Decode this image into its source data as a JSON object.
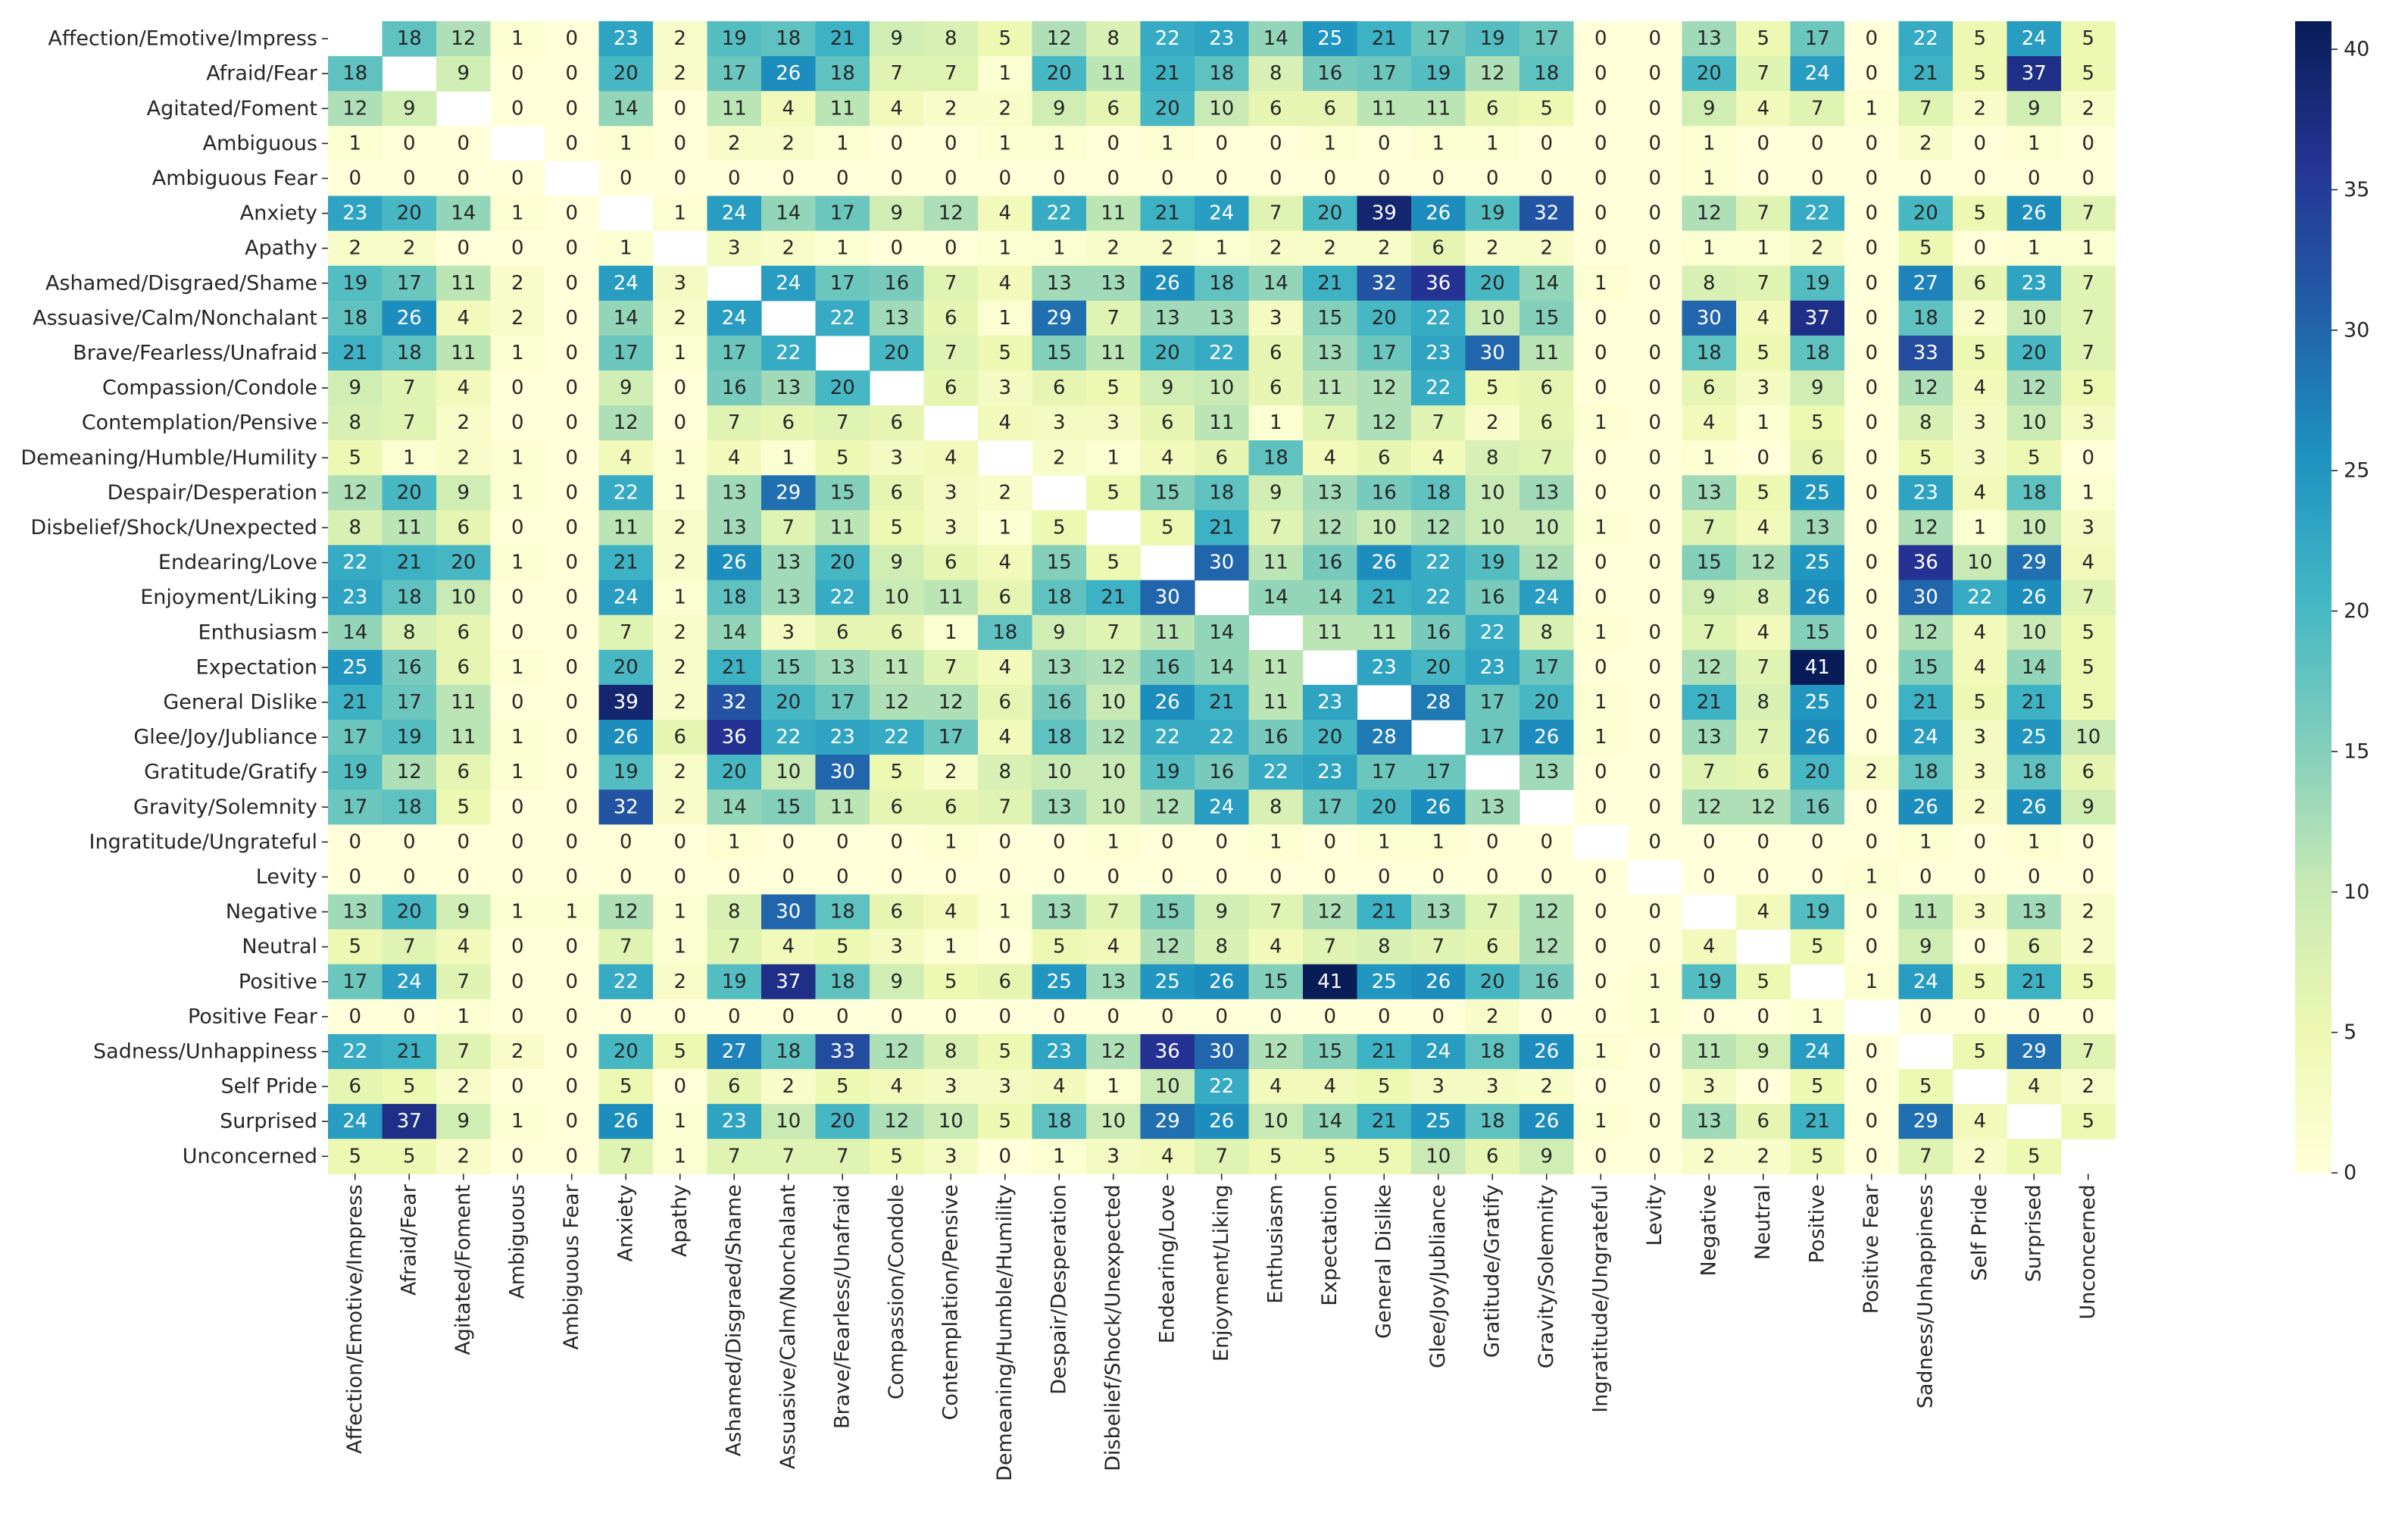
{
  "chart_data": {
    "type": "heatmap",
    "title": "",
    "xlabel": "",
    "ylabel": "",
    "labels": [
      "Affection/Emotive/Impress",
      "Afraid/Fear",
      "Agitated/Foment",
      "Ambiguous",
      "Ambiguous Fear",
      "Anxiety",
      "Apathy",
      "Ashamed/Disgraed/Shame",
      "Assuasive/Calm/Nonchalant",
      "Brave/Fearless/Unafraid",
      "Compassion/Condole",
      "Contemplation/Pensive",
      "Demeaning/Humble/Humility",
      "Despair/Desperation",
      "Disbelief/Shock/Unexpected",
      "Endearing/Love",
      "Enjoyment/Liking",
      "Enthusiasm",
      "Expectation",
      "General Dislike",
      "Glee/Joy/Jubliance",
      "Gratitude/Gratify",
      "Gravity/Solemnity",
      "Ingratitude/Ungrateful",
      "Levity",
      "Negative",
      "Neutral",
      "Positive",
      "Positive Fear",
      "Sadness/Unhappiness",
      "Self Pride",
      "Surprised",
      "Unconcerned"
    ],
    "matrix": [
      [
        null,
        18,
        12,
        1,
        0,
        23,
        2,
        19,
        18,
        21,
        9,
        8,
        5,
        12,
        8,
        22,
        23,
        14,
        25,
        21,
        17,
        19,
        17,
        0,
        0,
        13,
        5,
        17,
        0,
        22,
        5,
        24,
        5
      ],
      [
        18,
        null,
        9,
        0,
        0,
        20,
        2,
        17,
        26,
        18,
        7,
        7,
        1,
        20,
        11,
        21,
        18,
        8,
        16,
        17,
        19,
        12,
        18,
        0,
        0,
        20,
        7,
        24,
        0,
        21,
        5,
        37,
        5
      ],
      [
        12,
        9,
        null,
        0,
        0,
        14,
        0,
        11,
        4,
        11,
        4,
        2,
        2,
        9,
        6,
        20,
        10,
        6,
        6,
        11,
        11,
        6,
        5,
        0,
        0,
        9,
        4,
        7,
        1,
        7,
        2,
        9,
        2
      ],
      [
        1,
        0,
        0,
        null,
        0,
        1,
        0,
        2,
        2,
        1,
        0,
        0,
        1,
        1,
        0,
        1,
        0,
        0,
        1,
        0,
        1,
        1,
        0,
        0,
        0,
        1,
        0,
        0,
        0,
        2,
        0,
        1,
        0
      ],
      [
        0,
        0,
        0,
        0,
        null,
        0,
        0,
        0,
        0,
        0,
        0,
        0,
        0,
        0,
        0,
        0,
        0,
        0,
        0,
        0,
        0,
        0,
        0,
        0,
        0,
        1,
        0,
        0,
        0,
        0,
        0,
        0,
        0
      ],
      [
        23,
        20,
        14,
        1,
        0,
        null,
        1,
        24,
        14,
        17,
        9,
        12,
        4,
        22,
        11,
        21,
        24,
        7,
        20,
        39,
        26,
        19,
        32,
        0,
        0,
        12,
        7,
        22,
        0,
        20,
        5,
        26,
        7
      ],
      [
        2,
        2,
        0,
        0,
        0,
        1,
        null,
        3,
        2,
        1,
        0,
        0,
        1,
        1,
        2,
        2,
        1,
        2,
        2,
        2,
        6,
        2,
        2,
        0,
        0,
        1,
        1,
        2,
        0,
        5,
        0,
        1,
        1
      ],
      [
        19,
        17,
        11,
        2,
        0,
        24,
        3,
        null,
        24,
        17,
        16,
        7,
        4,
        13,
        13,
        26,
        18,
        14,
        21,
        32,
        36,
        20,
        14,
        1,
        0,
        8,
        7,
        19,
        0,
        27,
        6,
        23,
        7
      ],
      [
        18,
        26,
        4,
        2,
        0,
        14,
        2,
        24,
        null,
        22,
        13,
        6,
        1,
        29,
        7,
        13,
        13,
        3,
        15,
        20,
        22,
        10,
        15,
        0,
        0,
        30,
        4,
        37,
        0,
        18,
        2,
        10,
        7
      ],
      [
        21,
        18,
        11,
        1,
        0,
        17,
        1,
        17,
        22,
        null,
        20,
        7,
        5,
        15,
        11,
        20,
        22,
        6,
        13,
        17,
        23,
        30,
        11,
        0,
        0,
        18,
        5,
        18,
        0,
        33,
        5,
        20,
        7
      ],
      [
        9,
        7,
        4,
        0,
        0,
        9,
        0,
        16,
        13,
        20,
        null,
        6,
        3,
        6,
        5,
        9,
        10,
        6,
        11,
        12,
        22,
        5,
        6,
        0,
        0,
        6,
        3,
        9,
        0,
        12,
        4,
        12,
        5
      ],
      [
        8,
        7,
        2,
        0,
        0,
        12,
        0,
        7,
        6,
        7,
        6,
        null,
        4,
        3,
        3,
        6,
        11,
        1,
        7,
        12,
        7,
        2,
        6,
        1,
        0,
        4,
        1,
        5,
        0,
        8,
        3,
        10,
        3
      ],
      [
        5,
        1,
        2,
        1,
        0,
        4,
        1,
        4,
        1,
        5,
        3,
        4,
        null,
        2,
        1,
        4,
        6,
        18,
        4,
        6,
        4,
        8,
        7,
        0,
        0,
        1,
        0,
        6,
        0,
        5,
        3,
        5,
        0
      ],
      [
        12,
        20,
        9,
        1,
        0,
        22,
        1,
        13,
        29,
        15,
        6,
        3,
        2,
        null,
        5,
        15,
        18,
        9,
        13,
        16,
        18,
        10,
        13,
        0,
        0,
        13,
        5,
        25,
        0,
        23,
        4,
        18,
        1
      ],
      [
        8,
        11,
        6,
        0,
        0,
        11,
        2,
        13,
        7,
        11,
        5,
        3,
        1,
        5,
        null,
        5,
        21,
        7,
        12,
        10,
        12,
        10,
        10,
        1,
        0,
        7,
        4,
        13,
        0,
        12,
        1,
        10,
        3
      ],
      [
        22,
        21,
        20,
        1,
        0,
        21,
        2,
        26,
        13,
        20,
        9,
        6,
        4,
        15,
        5,
        null,
        30,
        11,
        16,
        26,
        22,
        19,
        12,
        0,
        0,
        15,
        12,
        25,
        0,
        36,
        10,
        29,
        4
      ],
      [
        23,
        18,
        10,
        0,
        0,
        24,
        1,
        18,
        13,
        22,
        10,
        11,
        6,
        18,
        21,
        30,
        null,
        14,
        14,
        21,
        22,
        16,
        24,
        0,
        0,
        9,
        8,
        26,
        0,
        30,
        22,
        26,
        7
      ],
      [
        14,
        8,
        6,
        0,
        0,
        7,
        2,
        14,
        3,
        6,
        6,
        1,
        18,
        9,
        7,
        11,
        14,
        null,
        11,
        11,
        16,
        22,
        8,
        1,
        0,
        7,
        4,
        15,
        0,
        12,
        4,
        10,
        5
      ],
      [
        25,
        16,
        6,
        1,
        0,
        20,
        2,
        21,
        15,
        13,
        11,
        7,
        4,
        13,
        12,
        16,
        14,
        11,
        null,
        23,
        20,
        23,
        17,
        0,
        0,
        12,
        7,
        41,
        0,
        15,
        4,
        14,
        5
      ],
      [
        21,
        17,
        11,
        0,
        0,
        39,
        2,
        32,
        20,
        17,
        12,
        12,
        6,
        16,
        10,
        26,
        21,
        11,
        23,
        null,
        28,
        17,
        20,
        1,
        0,
        21,
        8,
        25,
        0,
        21,
        5,
        21,
        5
      ],
      [
        17,
        19,
        11,
        1,
        0,
        26,
        6,
        36,
        22,
        23,
        22,
        17,
        4,
        18,
        12,
        22,
        22,
        16,
        20,
        28,
        null,
        17,
        26,
        1,
        0,
        13,
        7,
        26,
        0,
        24,
        3,
        25,
        10
      ],
      [
        19,
        12,
        6,
        1,
        0,
        19,
        2,
        20,
        10,
        30,
        5,
        2,
        8,
        10,
        10,
        19,
        16,
        22,
        23,
        17,
        17,
        null,
        13,
        0,
        0,
        7,
        6,
        20,
        2,
        18,
        3,
        18,
        6
      ],
      [
        17,
        18,
        5,
        0,
        0,
        32,
        2,
        14,
        15,
        11,
        6,
        6,
        7,
        13,
        10,
        12,
        24,
        8,
        17,
        20,
        26,
        13,
        null,
        0,
        0,
        12,
        12,
        16,
        0,
        26,
        2,
        26,
        9
      ],
      [
        0,
        0,
        0,
        0,
        0,
        0,
        0,
        1,
        0,
        0,
        0,
        1,
        0,
        0,
        1,
        0,
        0,
        1,
        0,
        1,
        1,
        0,
        0,
        null,
        0,
        0,
        0,
        0,
        0,
        1,
        0,
        1,
        0
      ],
      [
        0,
        0,
        0,
        0,
        0,
        0,
        0,
        0,
        0,
        0,
        0,
        0,
        0,
        0,
        0,
        0,
        0,
        0,
        0,
        0,
        0,
        0,
        0,
        0,
        null,
        0,
        0,
        0,
        1,
        0,
        0,
        0,
        0
      ],
      [
        13,
        20,
        9,
        1,
        1,
        12,
        1,
        8,
        30,
        18,
        6,
        4,
        1,
        13,
        7,
        15,
        9,
        7,
        12,
        21,
        13,
        7,
        12,
        0,
        0,
        null,
        4,
        19,
        0,
        11,
        3,
        13,
        2
      ],
      [
        5,
        7,
        4,
        0,
        0,
        7,
        1,
        7,
        4,
        5,
        3,
        1,
        0,
        5,
        4,
        12,
        8,
        4,
        7,
        8,
        7,
        6,
        12,
        0,
        0,
        4,
        null,
        5,
        0,
        9,
        0,
        6,
        2
      ],
      [
        17,
        24,
        7,
        0,
        0,
        22,
        2,
        19,
        37,
        18,
        9,
        5,
        6,
        25,
        13,
        25,
        26,
        15,
        41,
        25,
        26,
        20,
        16,
        0,
        1,
        19,
        5,
        null,
        1,
        24,
        5,
        21,
        5
      ],
      [
        0,
        0,
        1,
        0,
        0,
        0,
        0,
        0,
        0,
        0,
        0,
        0,
        0,
        0,
        0,
        0,
        0,
        0,
        0,
        0,
        0,
        2,
        0,
        0,
        1,
        0,
        0,
        1,
        null,
        0,
        0,
        0,
        0
      ],
      [
        22,
        21,
        7,
        2,
        0,
        20,
        5,
        27,
        18,
        33,
        12,
        8,
        5,
        23,
        12,
        36,
        30,
        12,
        15,
        21,
        24,
        18,
        26,
        1,
        0,
        11,
        9,
        24,
        0,
        null,
        5,
        29,
        7
      ],
      [
        6,
        5,
        2,
        0,
        0,
        5,
        0,
        6,
        2,
        5,
        4,
        3,
        3,
        4,
        1,
        10,
        22,
        4,
        4,
        5,
        3,
        3,
        2,
        0,
        0,
        3,
        0,
        5,
        0,
        5,
        null,
        4,
        2
      ],
      [
        24,
        37,
        9,
        1,
        0,
        26,
        1,
        23,
        10,
        20,
        12,
        10,
        5,
        18,
        10,
        29,
        26,
        10,
        14,
        21,
        25,
        18,
        26,
        1,
        0,
        13,
        6,
        21,
        0,
        29,
        4,
        null,
        5
      ],
      [
        5,
        5,
        2,
        0,
        0,
        7,
        1,
        7,
        7,
        7,
        5,
        3,
        0,
        1,
        3,
        4,
        7,
        5,
        5,
        5,
        10,
        6,
        9,
        0,
        0,
        2,
        2,
        5,
        0,
        7,
        2,
        5,
        null
      ]
    ],
    "colorbar": {
      "min": 0,
      "max": 41,
      "ticks": [
        0,
        5,
        10,
        15,
        20,
        25,
        30,
        35,
        40
      ],
      "colormap": "YlGnBu"
    }
  }
}
